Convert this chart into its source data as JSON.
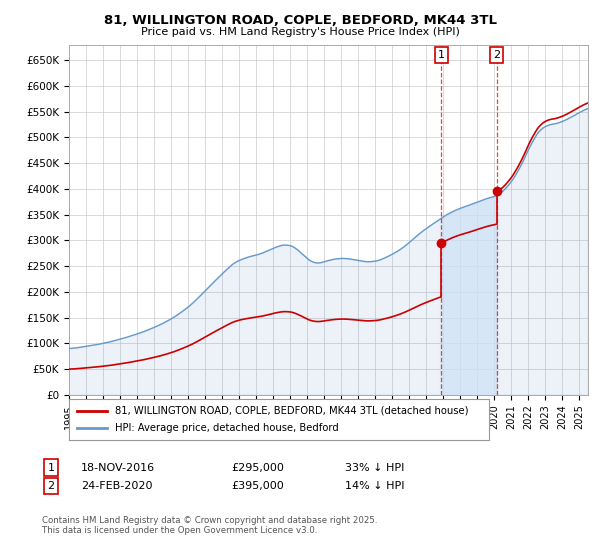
{
  "title": "81, WILLINGTON ROAD, COPLE, BEDFORD, MK44 3TL",
  "subtitle": "Price paid vs. HM Land Registry's House Price Index (HPI)",
  "ylabel_ticks": [
    "£0",
    "£50K",
    "£100K",
    "£150K",
    "£200K",
    "£250K",
    "£300K",
    "£350K",
    "£400K",
    "£450K",
    "£500K",
    "£550K",
    "£600K",
    "£650K"
  ],
  "ytick_vals": [
    0,
    50000,
    100000,
    150000,
    200000,
    250000,
    300000,
    350000,
    400000,
    450000,
    500000,
    550000,
    600000,
    650000
  ],
  "ylim": [
    0,
    680000
  ],
  "xlim_start": 1995.0,
  "xlim_end": 2025.5,
  "transaction1_year": 2016.88,
  "transaction1_price": 295000,
  "transaction1_date": "18-NOV-2016",
  "transaction1_pct": "33% ↓ HPI",
  "transaction2_year": 2020.13,
  "transaction2_price": 395000,
  "transaction2_date": "24-FEB-2020",
  "transaction2_pct": "14% ↓ HPI",
  "legend_line1": "81, WILLINGTON ROAD, COPLE, BEDFORD, MK44 3TL (detached house)",
  "legend_line2": "HPI: Average price, detached house, Bedford",
  "footnote": "Contains HM Land Registry data © Crown copyright and database right 2025.\nThis data is licensed under the Open Government Licence v3.0.",
  "line_color_red": "#cc0000",
  "line_color_blue": "#6699cc",
  "fill_color_between": "#ddeeff",
  "background_color": "#ffffff",
  "grid_color": "#cccccc"
}
